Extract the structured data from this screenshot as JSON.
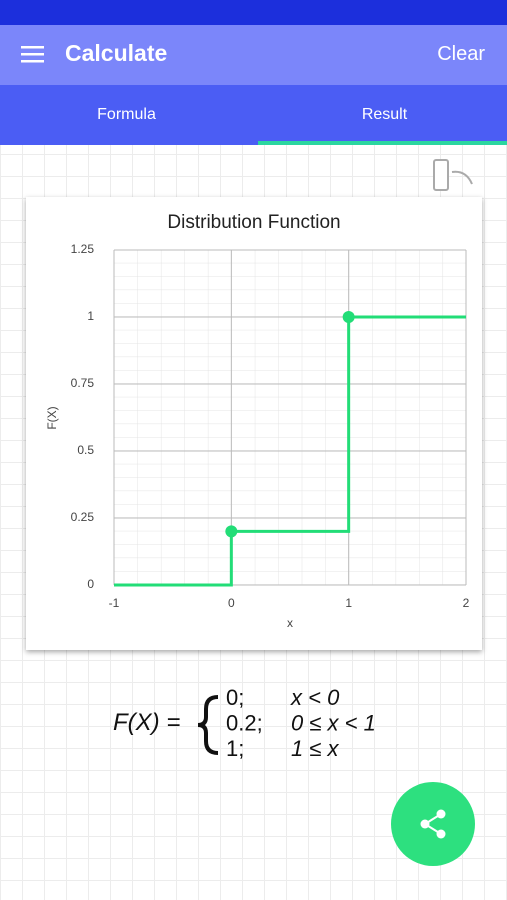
{
  "app_bar": {
    "title": "Calculate",
    "action": "Clear"
  },
  "tabs": [
    "Formula",
    "Result"
  ],
  "chart_data": {
    "type": "line",
    "title": "Distribution Function",
    "x_label": "x",
    "y_label": "F(X)",
    "x": [
      -1,
      0,
      0,
      1,
      1,
      2
    ],
    "values": [
      0,
      0,
      0.2,
      0.2,
      1,
      1
    ],
    "color": "#22dd77",
    "markers": {
      "x": [
        0,
        1
      ],
      "values": [
        0.2,
        1
      ]
    },
    "xlim": [
      -1,
      2
    ],
    "xticks": [
      -1,
      0,
      1,
      2
    ],
    "ylim": [
      0,
      1.25
    ],
    "yticks": [
      0,
      0.25,
      0.5,
      0.75,
      1,
      1.25
    ],
    "grid": true
  },
  "formula": {
    "lhs": "F(X) =",
    "cases": [
      [
        "0;",
        "x < 0"
      ],
      [
        "0.2;",
        "0 ≤ x < 1"
      ],
      [
        "1;",
        "1 ≤ x"
      ]
    ]
  }
}
